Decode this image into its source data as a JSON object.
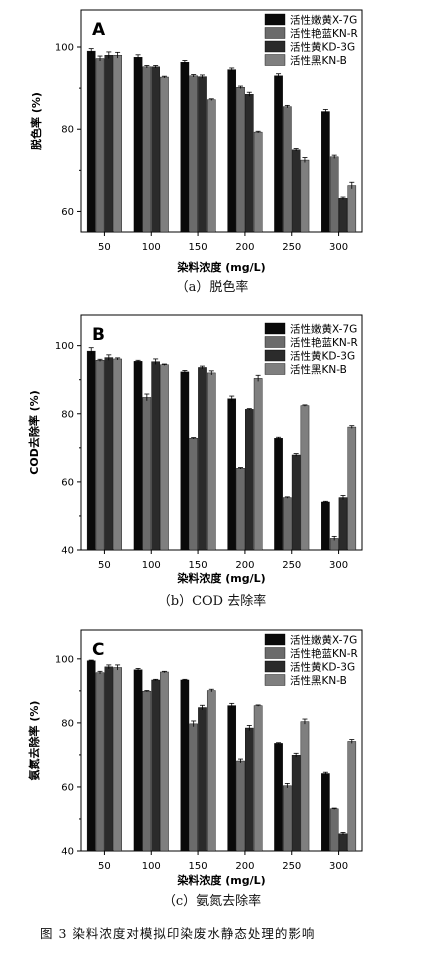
{
  "figure_caption": "图 3   染料浓度对模拟印染废水静态处理的影响",
  "series_colors": [
    "#0a0a0a",
    "#6b6b6b",
    "#2b2b2b",
    "#7f7f7f"
  ],
  "chart_data": [
    {
      "type": "bar",
      "panel_label": "A",
      "caption": "（a）脱色率",
      "xlabel": "染料浓度 (mg/L)",
      "ylabel": "脱色率 (%)",
      "categories": [
        "50",
        "100",
        "150",
        "200",
        "250",
        "300"
      ],
      "ylim": [
        55,
        109
      ],
      "yticks": [
        60,
        80,
        100
      ],
      "legend_position": "top-right",
      "series": [
        {
          "name": "活性嫩黄X-7G",
          "values": [
            99.0,
            97.5,
            96.3,
            94.5,
            93.0,
            84.3
          ],
          "errors": [
            0.6,
            0.6,
            0.4,
            0.4,
            0.5,
            0.5
          ]
        },
        {
          "name": "活性艳蓝KN-R",
          "values": [
            97.2,
            95.2,
            93.0,
            90.2,
            85.5,
            73.3
          ],
          "errors": [
            0.6,
            0.3,
            0.3,
            0.3,
            0.3,
            0.4
          ]
        },
        {
          "name": "活性黄KD-3G",
          "values": [
            98.0,
            95.2,
            92.8,
            88.5,
            75.0,
            63.2
          ],
          "errors": [
            0.8,
            0.3,
            0.4,
            0.5,
            0.3,
            0.3
          ]
        },
        {
          "name": "活性黑KN-B",
          "values": [
            98.0,
            92.7,
            87.2,
            79.3,
            72.5,
            66.3
          ],
          "errors": [
            0.7,
            0.2,
            0.2,
            0.2,
            0.6,
            0.8
          ]
        }
      ]
    },
    {
      "type": "bar",
      "panel_label": "B",
      "caption": "（b）COD 去除率",
      "xlabel": "染料浓度 (mg/L)",
      "ylabel": "COD去除率 (%)",
      "categories": [
        "50",
        "100",
        "150",
        "200",
        "250",
        "300"
      ],
      "ylim": [
        40,
        109
      ],
      "yticks": [
        40,
        60,
        80,
        100
      ],
      "legend_position": "top-right",
      "series": [
        {
          "name": "活性嫩黄X-7G",
          "values": [
            98.4,
            95.4,
            92.3,
            84.4,
            72.8,
            54.1
          ],
          "errors": [
            1.0,
            0.3,
            0.4,
            0.8,
            0.3,
            0.2
          ]
        },
        {
          "name": "活性艳蓝KN-R",
          "values": [
            95.7,
            84.8,
            72.8,
            64.0,
            55.4,
            43.4
          ],
          "errors": [
            0.3,
            1.0,
            0.2,
            0.2,
            0.2,
            0.6
          ]
        },
        {
          "name": "活性黄KD-3G",
          "values": [
            96.5,
            95.3,
            93.6,
            81.3,
            67.9,
            55.4
          ],
          "errors": [
            0.8,
            0.8,
            0.4,
            0.2,
            0.4,
            0.6
          ]
        },
        {
          "name": "活性黑KN-B",
          "values": [
            96.1,
            94.4,
            92.0,
            90.4,
            82.4,
            76.1
          ],
          "errors": [
            0.3,
            0.2,
            0.6,
            0.9,
            0.2,
            0.4
          ]
        }
      ]
    },
    {
      "type": "bar",
      "panel_label": "C",
      "caption": "（c）氨氮去除率",
      "xlabel": "染料浓度 (mg/L)",
      "ylabel": "氨氮去除率 (%)",
      "categories": [
        "50",
        "100",
        "150",
        "200",
        "250",
        "300"
      ],
      "ylim": [
        40,
        109
      ],
      "yticks": [
        40,
        60,
        80,
        100
      ],
      "legend_position": "top-right",
      "series": [
        {
          "name": "活性嫩黄X-7G",
          "values": [
            99.4,
            96.6,
            93.4,
            85.4,
            73.6,
            64.2
          ],
          "errors": [
            0.2,
            0.4,
            0.2,
            0.7,
            0.2,
            0.4
          ]
        },
        {
          "name": "活性艳蓝KN-R",
          "values": [
            95.7,
            89.9,
            79.7,
            68.1,
            60.4,
            53.2
          ],
          "errors": [
            0.4,
            0.2,
            0.9,
            0.6,
            0.7,
            0.2
          ]
        },
        {
          "name": "活性黄KD-3G",
          "values": [
            97.5,
            93.4,
            84.8,
            78.4,
            69.9,
            45.4
          ],
          "errors": [
            0.6,
            0.2,
            0.7,
            0.8,
            0.6,
            0.4
          ]
        },
        {
          "name": "活性黑KN-B",
          "values": [
            97.3,
            95.9,
            90.1,
            85.4,
            80.4,
            74.2
          ],
          "errors": [
            0.8,
            0.2,
            0.4,
            0.2,
            0.8,
            0.6
          ]
        }
      ]
    }
  ]
}
